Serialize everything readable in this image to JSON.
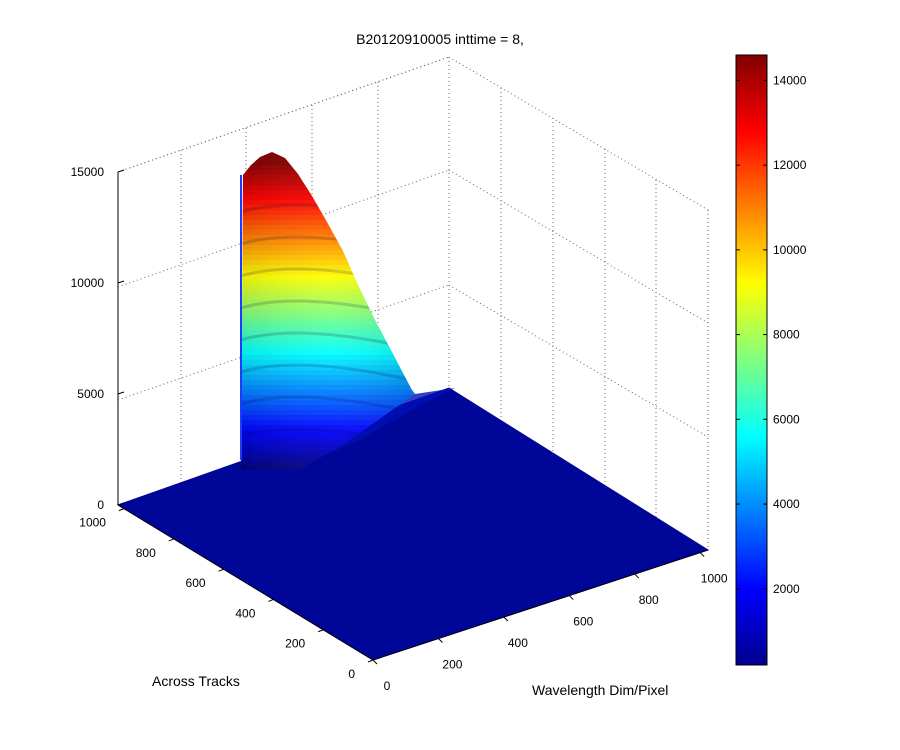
{
  "chart_data": {
    "type": "surface3d",
    "title": "B20120910005 inttime = 8,",
    "xlabel": "Wavelength Dim/Pixel",
    "ylabel": "Across Tracks",
    "zlabel": "",
    "x_range": [
      0,
      1024
    ],
    "y_range": [
      0,
      1024
    ],
    "z_range": [
      0,
      15000
    ],
    "x_ticks": [
      "0",
      "200",
      "400",
      "600",
      "800",
      "1000"
    ],
    "y_ticks": [
      "0",
      "200",
      "400",
      "600",
      "800",
      "1000"
    ],
    "z_ticks": [
      "0",
      "5000",
      "10000",
      "15000"
    ],
    "grid": true,
    "colormap": "jet",
    "colorbar": {
      "range": [
        200,
        14600
      ],
      "ticks": [
        "2000",
        "4000",
        "6000",
        "8000",
        "10000",
        "12000",
        "14000"
      ]
    },
    "peak": {
      "x": 0,
      "y": 880,
      "z": 15000
    },
    "profile": [
      {
        "y": 1000,
        "z": 0
      },
      {
        "y": 960,
        "z": 14800
      },
      {
        "y": 900,
        "z": 14700
      },
      {
        "y": 820,
        "z": 11500
      },
      {
        "y": 740,
        "z": 7300
      },
      {
        "y": 640,
        "z": 3200
      },
      {
        "y": 560,
        "z": 600
      },
      {
        "y": 470,
        "z": 0
      }
    ]
  }
}
